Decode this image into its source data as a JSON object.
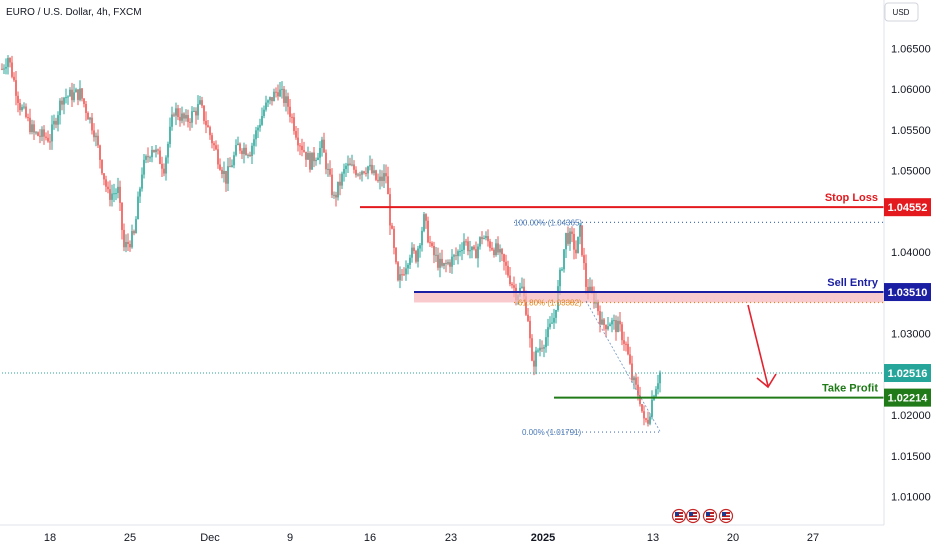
{
  "title": "EURO / U.S. Dollar, 4h, FXCM",
  "currency_button": "USD",
  "colors": {
    "up": "#26a69a",
    "down": "#ef5350",
    "stop": "#e3191e",
    "entry": "#1a1ea3",
    "profit": "#1f7a17",
    "current": "#26a69a",
    "fib_100": "#4a78b5",
    "fib_618": "#e0891f",
    "zone": "#f5b8bc",
    "arrow": "#e3232f"
  },
  "chart_data": {
    "type": "candlestick",
    "title": "EURO / U.S. Dollar, 4h, FXCM",
    "ylim": [
      1.0065,
      1.0685
    ],
    "y_ticks": [
      "1.06500",
      "1.06000",
      "1.05500",
      "1.05000",
      "1.04500",
      "1.04000",
      "1.03500",
      "1.03000",
      "1.02500",
      "1.02000",
      "1.01500",
      "1.01000"
    ],
    "x_ticks": [
      "18",
      "25",
      "Dec",
      "9",
      "16",
      "23",
      "2025",
      "13",
      "20",
      "27"
    ],
    "grid": false,
    "close_path": [
      [
        0,
        1.0625
      ],
      [
        3,
        1.064
      ],
      [
        9,
        1.058
      ],
      [
        16,
        1.0545
      ],
      [
        24,
        1.054
      ],
      [
        30,
        1.059
      ],
      [
        39,
        1.0595
      ],
      [
        46,
        1.055
      ],
      [
        53,
        1.047
      ],
      [
        58,
        1.0475
      ],
      [
        61,
        1.0405
      ],
      [
        66,
        1.042
      ],
      [
        70,
        1.05
      ],
      [
        75,
        1.053
      ],
      [
        81,
        1.0505
      ],
      [
        86,
        1.0575
      ],
      [
        92,
        1.056
      ],
      [
        99,
        1.058
      ],
      [
        106,
        1.053
      ],
      [
        112,
        1.049
      ],
      [
        118,
        1.053
      ],
      [
        124,
        1.0525
      ],
      [
        131,
        1.0575
      ],
      [
        138,
        1.06
      ],
      [
        143,
        1.058
      ],
      [
        148,
        1.054
      ],
      [
        154,
        1.051
      ],
      [
        160,
        1.053
      ],
      [
        166,
        1.0465
      ],
      [
        172,
        1.0505
      ],
      [
        178,
        1.05
      ],
      [
        183,
        1.0505
      ],
      [
        188,
        1.0485
      ],
      [
        192,
        1.0495
      ],
      [
        194,
        1.044
      ],
      [
        198,
        1.036
      ],
      [
        204,
        1.04
      ],
      [
        207,
        1.0395
      ],
      [
        211,
        1.044
      ],
      [
        215,
        1.04
      ],
      [
        220,
        1.038
      ],
      [
        227,
        1.0395
      ],
      [
        231,
        1.0415
      ],
      [
        236,
        1.0395
      ],
      [
        240,
        1.042
      ],
      [
        244,
        1.041
      ],
      [
        248,
        1.04
      ],
      [
        252,
        1.038
      ],
      [
        257,
        1.035
      ],
      [
        260,
        1.0355
      ],
      [
        263,
        1.032
      ],
      [
        265,
        1.026
      ],
      [
        268,
        1.028
      ],
      [
        273,
        1.03
      ],
      [
        276,
        1.032
      ],
      [
        279,
        1.037
      ],
      [
        282,
        1.042
      ],
      [
        285,
        1.0415
      ],
      [
        287,
        1.04
      ],
      [
        289,
        1.0425
      ],
      [
        292,
        1.036
      ],
      [
        294,
        1.035
      ],
      [
        297,
        1.034
      ],
      [
        300,
        1.031
      ],
      [
        304,
        1.0315
      ],
      [
        309,
        1.0305
      ],
      [
        312,
        1.0285
      ],
      [
        315,
        1.0245
      ],
      [
        319,
        1.022
      ],
      [
        321,
        1.019
      ],
      [
        323,
        1.0195
      ],
      [
        326,
        1.023
      ],
      [
        329,
        1.0252
      ]
    ],
    "levels": {
      "stop_loss": 1.04552,
      "sell_entry": 1.0351,
      "take_profit": 1.02214,
      "current_price": 1.02516,
      "fib_100": 1.04365,
      "fib_618": 1.03382,
      "fib_0": 1.01791
    }
  },
  "annotations": {
    "stop_loss_label": "Stop Loss",
    "stop_loss_value": "1.04552",
    "sell_entry_label": "Sell Entry",
    "sell_entry_value": "1.03510",
    "take_profit_label": "Take Profit",
    "take_profit_value": "1.02214",
    "current_value": "1.02516",
    "fib_100_label": "100.00% (1.04365)",
    "fib_618_label": "61.80% (1.03382)",
    "fib_0_label": "0.00% (1.01791)"
  },
  "event_markers": [
    "us-flag-icon",
    "us-flag-icon",
    "us-flag-icon",
    "us-flag-icon"
  ]
}
